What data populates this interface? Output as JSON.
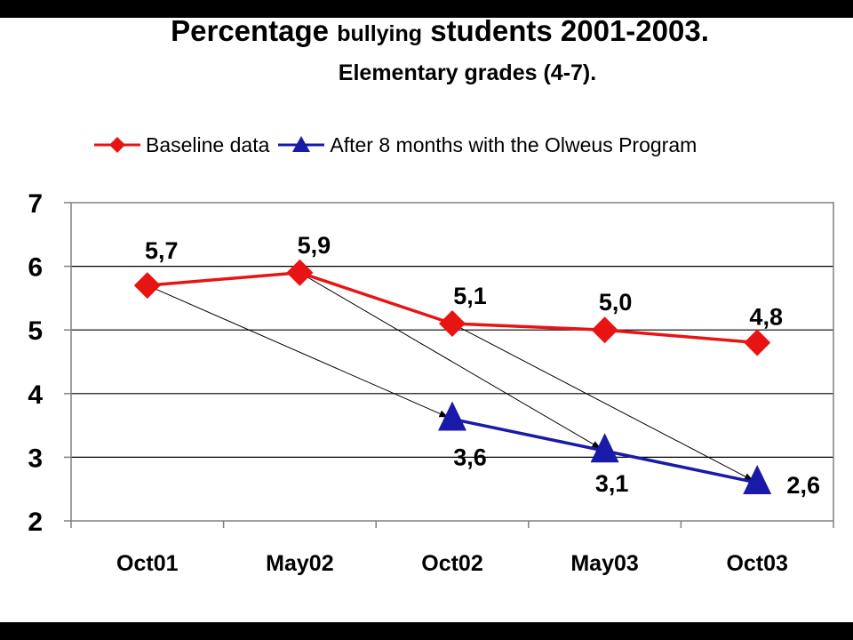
{
  "title": {
    "part1": "Percentage",
    "part2": "bullying",
    "part3": "students 2001-2003."
  },
  "subtitle": "Elementary grades (4-7).",
  "chart_data": {
    "type": "line",
    "categories": [
      "Oct01",
      "May02",
      "Oct02",
      "May03",
      "Oct03"
    ],
    "ylim": [
      2,
      7
    ],
    "yticks": [
      2,
      3,
      4,
      5,
      6,
      7
    ],
    "grid": true,
    "legend_position": "top",
    "series": [
      {
        "name": "Baseline data",
        "color": "#e81414",
        "marker": "diamond",
        "values": [
          5.7,
          5.9,
          5.1,
          5.0,
          4.8
        ],
        "labels": [
          "5,7",
          "5,9",
          "5,1",
          "5,0",
          "4,8"
        ]
      },
      {
        "name": "After 8 months with the Olweus Program",
        "color": "#1a1aa8",
        "marker": "triangle",
        "values": [
          null,
          null,
          3.6,
          3.1,
          2.6
        ],
        "labels": [
          "",
          "",
          "3,6",
          "3,1",
          "2,6"
        ]
      }
    ],
    "annotations": [
      {
        "type": "arrow",
        "from": {
          "series": 0,
          "index": 0
        },
        "to": {
          "series": 1,
          "index": 2
        }
      },
      {
        "type": "arrow",
        "from": {
          "series": 0,
          "index": 1
        },
        "to": {
          "series": 1,
          "index": 3
        }
      },
      {
        "type": "arrow",
        "from": {
          "series": 0,
          "index": 2
        },
        "to": {
          "series": 1,
          "index": 4
        }
      }
    ]
  }
}
